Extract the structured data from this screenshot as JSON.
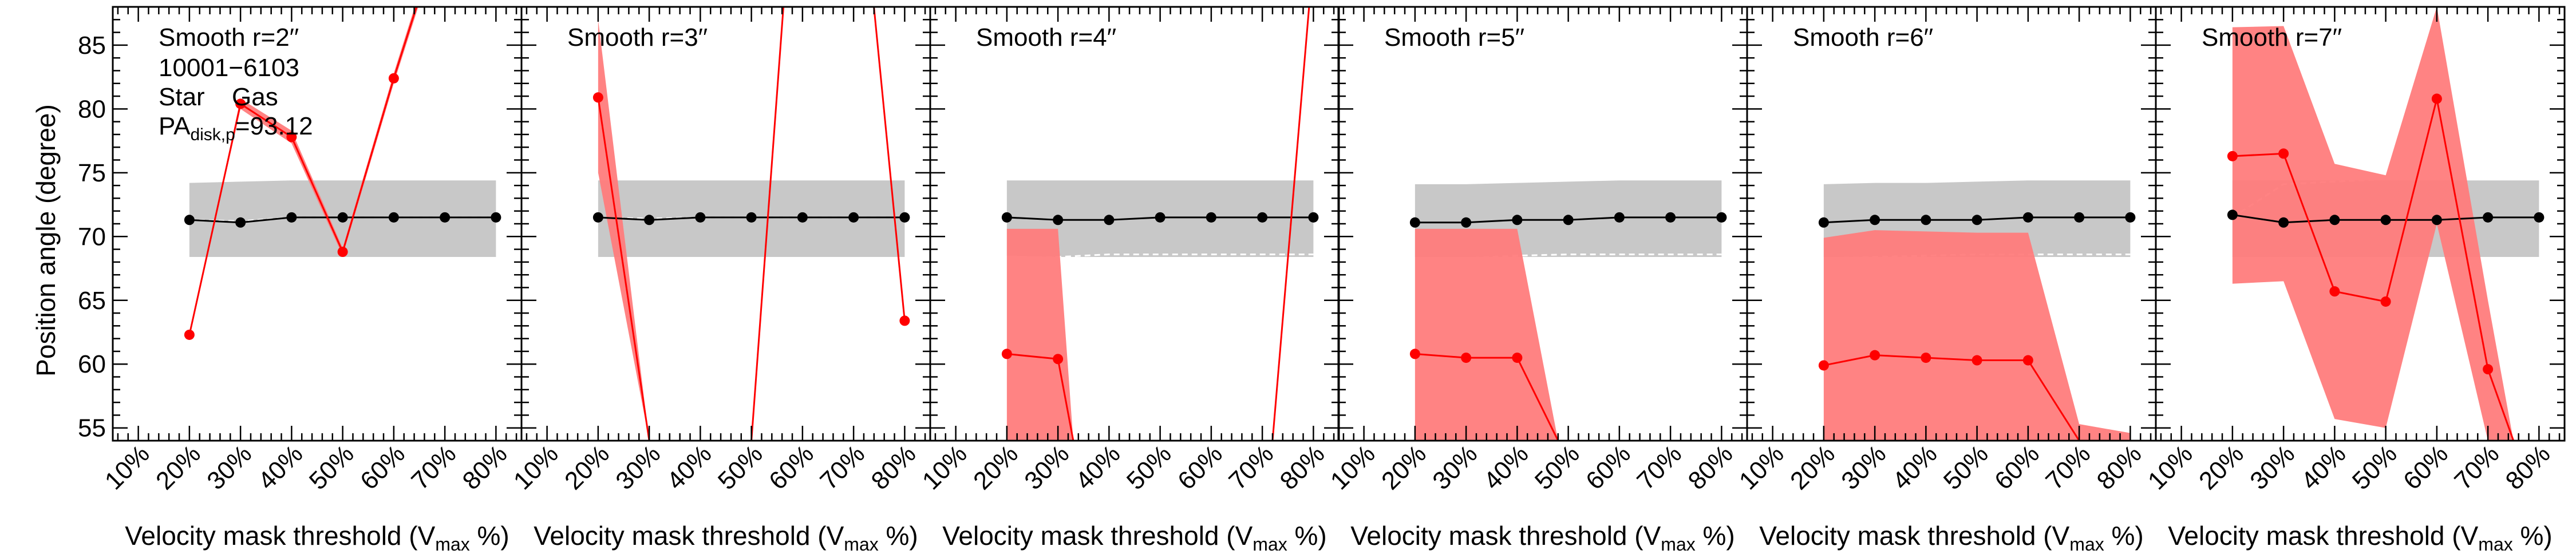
{
  "chart_data": {
    "type": "line",
    "ylabel": "Position angle (degree)",
    "xlabel_main": "Velocity mask threshold (V",
    "xlabel_sub": "max",
    "xlabel_end": " %)",
    "xticks": [
      "10%",
      "20%",
      "30%",
      "40%",
      "50%",
      "60%",
      "70%",
      "80%"
    ],
    "xlim": [
      5,
      85
    ],
    "ylim": [
      54,
      88
    ],
    "yticks": [
      55,
      60,
      65,
      70,
      75,
      80,
      85
    ],
    "colors": {
      "star": "#000000",
      "gas": "#ff0000",
      "star_band": "#c8c8c8",
      "gas_band": "#ff7c7c",
      "band_mid": "#ffffff"
    },
    "legend": {
      "id": "10001−6103",
      "star": "Star",
      "gas": "Gas",
      "pa_main": "PA",
      "pa_sub": "disk,p",
      "pa_value": "=93.12"
    },
    "panels": [
      {
        "title": "Smooth r=2′′",
        "star": {
          "x": [
            20,
            30,
            40,
            50,
            60,
            70,
            80
          ],
          "y": [
            71.3,
            71.1,
            71.5,
            71.5,
            71.5,
            71.5,
            71.5
          ],
          "band_low": [
            68.4,
            68.4,
            68.4,
            68.4,
            68.4,
            68.4,
            68.4
          ],
          "band_high": [
            74.2,
            74.3,
            74.4,
            74.4,
            74.4,
            74.4,
            74.4
          ],
          "mid": [
            71.3,
            71.2,
            71.5,
            71.5,
            71.5,
            71.5,
            71.5
          ]
        },
        "gas": {
          "x": [
            20,
            30,
            40,
            50,
            60,
            70
          ],
          "y": [
            62.3,
            80.4,
            77.8,
            68.8,
            82.4,
            95
          ],
          "band_low": [
            62.3,
            80.0,
            77.3,
            68.5,
            82.0,
            94.5
          ],
          "band_high": [
            62.3,
            80.8,
            78.3,
            69.1,
            82.8,
            95.5
          ],
          "markers": [
            true,
            true,
            true,
            true,
            true,
            false
          ]
        }
      },
      {
        "title": "Smooth r=3′′",
        "star": {
          "x": [
            20,
            30,
            40,
            50,
            60,
            70,
            80
          ],
          "y": [
            71.5,
            71.3,
            71.5,
            71.5,
            71.5,
            71.5,
            71.5
          ],
          "band_low": [
            68.4,
            68.4,
            68.4,
            68.4,
            68.4,
            68.4,
            68.4
          ],
          "band_high": [
            74.4,
            74.4,
            74.4,
            74.4,
            74.4,
            74.4,
            74.4
          ],
          "mid": [
            71.5,
            71.4,
            71.5,
            71.5,
            71.5,
            71.5,
            71.5
          ]
        },
        "gas": {
          "x": [
            20,
            30,
            50,
            57,
            73,
            80
          ],
          "y": [
            80.9,
            54,
            54,
            92,
            92,
            63.4
          ],
          "band_low": [
            75,
            54,
            54,
            92,
            92,
            63.4
          ],
          "band_high": [
            87,
            54,
            54,
            92,
            92,
            63.4
          ],
          "markers": [
            true,
            false,
            false,
            false,
            false,
            true
          ]
        }
      },
      {
        "title": "Smooth r=4′′",
        "star": {
          "x": [
            20,
            30,
            40,
            50,
            60,
            70,
            80
          ],
          "y": [
            71.5,
            71.3,
            71.3,
            71.5,
            71.5,
            71.5,
            71.5
          ],
          "band_low": [
            68.5,
            68.4,
            68.4,
            68.4,
            68.4,
            68.4,
            68.4
          ],
          "band_high": [
            74.4,
            74.4,
            74.4,
            74.4,
            74.4,
            74.4,
            74.4
          ],
          "mid": [
            68.3,
            68.4,
            68.6,
            68.6,
            68.6,
            68.6,
            68.6
          ]
        },
        "gas": {
          "x": [
            20,
            30,
            33,
            72,
            80
          ],
          "y": [
            60.8,
            60.4,
            54,
            54,
            92
          ],
          "band_low": [
            54,
            54,
            54,
            54,
            92
          ],
          "band_high": [
            70.6,
            70.6,
            54,
            54,
            92
          ],
          "markers": [
            true,
            true,
            false,
            false,
            false
          ]
        }
      },
      {
        "title": "Smooth r=5′′",
        "star": {
          "x": [
            20,
            30,
            40,
            50,
            60,
            70,
            80
          ],
          "y": [
            71.1,
            71.1,
            71.3,
            71.3,
            71.5,
            71.5,
            71.5
          ],
          "band_low": [
            68.4,
            68.4,
            68.4,
            68.4,
            68.4,
            68.4,
            68.4
          ],
          "band_high": [
            74.1,
            74.1,
            74.2,
            74.3,
            74.4,
            74.4,
            74.4
          ],
          "mid": [
            68.1,
            68.3,
            68.5,
            68.6,
            68.6,
            68.6,
            68.6
          ]
        },
        "gas": {
          "x": [
            20,
            30,
            40,
            48
          ],
          "y": [
            60.8,
            60.5,
            60.5,
            54
          ],
          "band_low": [
            54,
            54,
            54,
            54
          ],
          "band_high": [
            70.6,
            70.6,
            70.6,
            54
          ],
          "markers": [
            true,
            true,
            true,
            false
          ]
        }
      },
      {
        "title": "Smooth r=6′′",
        "star": {
          "x": [
            20,
            30,
            40,
            50,
            60,
            70,
            80
          ],
          "y": [
            71.1,
            71.3,
            71.3,
            71.3,
            71.5,
            71.5,
            71.5
          ],
          "band_low": [
            68.4,
            68.4,
            68.4,
            68.4,
            68.4,
            68.4,
            68.4
          ],
          "band_high": [
            74.1,
            74.2,
            74.2,
            74.3,
            74.4,
            74.4,
            74.4
          ],
          "mid": [
            68.3,
            68.4,
            68.5,
            68.6,
            68.6,
            68.6,
            68.6
          ]
        },
        "gas": {
          "x": [
            20,
            30,
            40,
            50,
            60,
            70,
            80
          ],
          "y": [
            59.9,
            60.7,
            60.5,
            60.3,
            60.3,
            54,
            54
          ],
          "band_low": [
            54,
            54,
            54,
            54,
            54,
            54,
            54
          ],
          "band_high": [
            69.9,
            70.5,
            70.4,
            70.3,
            70.3,
            55.3,
            54.6
          ],
          "markers": [
            true,
            true,
            true,
            true,
            true,
            false,
            false
          ]
        }
      },
      {
        "title": "Smooth r=7′′",
        "star": {
          "x": [
            20,
            30,
            40,
            50,
            60,
            70,
            80
          ],
          "y": [
            71.7,
            71.1,
            71.3,
            71.3,
            71.3,
            71.5,
            71.5
          ],
          "band_low": [
            68.4,
            68.4,
            68.4,
            68.4,
            68.4,
            68.4,
            68.4
          ],
          "band_high": [
            74.4,
            74.4,
            74.4,
            74.4,
            74.4,
            74.4,
            74.4
          ],
          "mid": [
            71.5,
            74.1,
            74.3,
            74.5,
            74.5,
            74.5,
            74.5
          ]
        },
        "gas": {
          "x": [
            20,
            30,
            40,
            50,
            60,
            70,
            75
          ],
          "y": [
            76.3,
            76.5,
            65.7,
            64.9,
            80.8,
            59.6,
            54
          ],
          "band_low": [
            66.3,
            66.5,
            55.7,
            55.0,
            71.0,
            54,
            54
          ],
          "band_high": [
            86.4,
            86.5,
            75.7,
            74.8,
            88,
            65,
            54
          ],
          "markers": [
            true,
            true,
            true,
            true,
            true,
            true,
            false
          ]
        }
      }
    ]
  }
}
